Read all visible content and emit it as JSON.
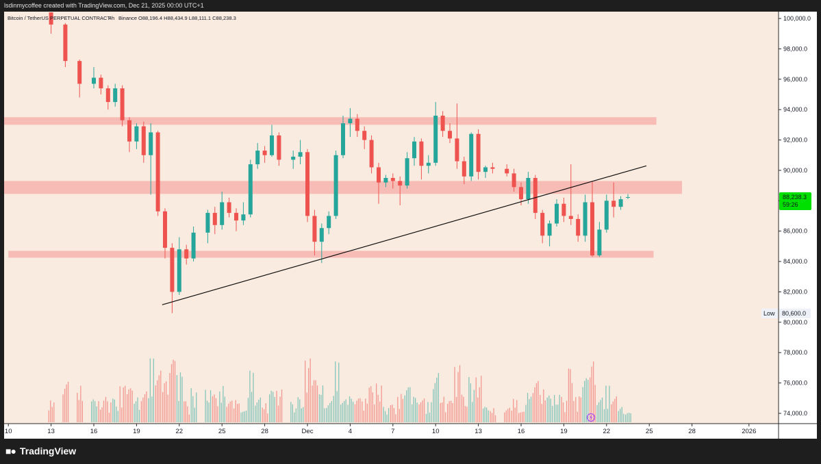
{
  "header": {
    "creator_line": "lsdinmycoffee created with TradingView.com, Dec 21, 2025 00:00 UTC+1"
  },
  "legend": {
    "symbol": "Bitcoin / TetherUS PERPETUAL CONTRACT",
    "interval": "4h",
    "exchange": "Binance",
    "ohlc": "O88,196.4  H88,434.9  L88,111.1  C88,238.3"
  },
  "price_badge": {
    "price": "88,238.3",
    "countdown": "59:26",
    "color": "#00e000"
  },
  "low_badge": {
    "label": "Low",
    "value": "80,600.0"
  },
  "footer": {
    "brand": "TradingView"
  },
  "colors": {
    "background": "#f9ebe0",
    "up_candle": "#26a69a",
    "down_candle": "#ef5350",
    "zone": "#f8b4ae",
    "trendline": "#111111"
  },
  "chart_data": {
    "type": "candlestick",
    "y_axis": {
      "ticks": [
        "100,000.0",
        "98,000.0",
        "96,000.0",
        "94,000.0",
        "92,000.0",
        "90,000.0",
        "88,000.0",
        "86,000.0",
        "84,000.0",
        "82,000.0",
        "80,000.0",
        "78,000.0",
        "76,000.0",
        "74,000.0"
      ],
      "tick_values": [
        100000,
        98000,
        96000,
        94000,
        92000,
        90000,
        88000,
        86000,
        84000,
        82000,
        80000,
        78000,
        76000,
        74000
      ],
      "range": [
        73000,
        100500
      ]
    },
    "x_axis": {
      "ticks": [
        "10",
        "13",
        "16",
        "19",
        "22",
        "25",
        "28",
        "Dec",
        "4",
        "7",
        "10",
        "13",
        "16",
        "19",
        "22",
        "25",
        "28",
        "2026"
      ],
      "tick_days": [
        -21,
        -18,
        -15,
        -12,
        -9,
        -6,
        -3,
        0,
        3,
        6,
        9,
        12,
        15,
        18,
        21,
        24,
        27,
        31
      ]
    },
    "zones": [
      {
        "from_day": -22,
        "to_day": 24.5,
        "low": 93000,
        "high": 93500
      },
      {
        "from_day": -21.5,
        "to_day": 26.3,
        "low": 88450,
        "high": 89300
      },
      {
        "from_day": -21,
        "to_day": 24.3,
        "low": 84250,
        "high": 84700
      }
    ],
    "trendline": {
      "from_day": -10.2,
      "from_price": 81150,
      "to_day": 23.8,
      "to_price": 90300
    },
    "candles": [
      {
        "d": -18.0,
        "o": 100400,
        "h": 100400,
        "l": 99000,
        "c": 99600
      },
      {
        "d": -17.0,
        "o": 99600,
        "h": 99700,
        "l": 96800,
        "c": 97200
      },
      {
        "d": -16.0,
        "o": 97200,
        "h": 97300,
        "l": 94800,
        "c": 95700
      },
      {
        "d": -15.0,
        "o": 95700,
        "h": 96800,
        "l": 95400,
        "c": 96100
      },
      {
        "d": -14.5,
        "o": 96100,
        "h": 96300,
        "l": 95000,
        "c": 95400
      },
      {
        "d": -14.0,
        "o": 95400,
        "h": 95600,
        "l": 94000,
        "c": 94500
      },
      {
        "d": -13.5,
        "o": 94500,
        "h": 95700,
        "l": 94200,
        "c": 95400
      },
      {
        "d": -13.0,
        "o": 95400,
        "h": 95600,
        "l": 92900,
        "c": 93300
      },
      {
        "d": -12.5,
        "o": 93300,
        "h": 93500,
        "l": 91200,
        "c": 91900
      },
      {
        "d": -12.0,
        "o": 91900,
        "h": 93100,
        "l": 91400,
        "c": 92900
      },
      {
        "d": -11.5,
        "o": 92900,
        "h": 93200,
        "l": 90500,
        "c": 91000
      },
      {
        "d": -11.0,
        "o": 91000,
        "h": 93100,
        "l": 88400,
        "c": 92500
      },
      {
        "d": -10.5,
        "o": 92500,
        "h": 92600,
        "l": 87000,
        "c": 87300
      },
      {
        "d": -10.0,
        "o": 87300,
        "h": 87500,
        "l": 84200,
        "c": 84900
      },
      {
        "d": -9.5,
        "o": 84900,
        "h": 85200,
        "l": 80600,
        "c": 82000
      },
      {
        "d": -9.0,
        "o": 82000,
        "h": 85600,
        "l": 81800,
        "c": 84800
      },
      {
        "d": -8.5,
        "o": 84800,
        "h": 85100,
        "l": 83800,
        "c": 84200
      },
      {
        "d": -8.0,
        "o": 84200,
        "h": 86300,
        "l": 84000,
        "c": 85900
      },
      {
        "d": -7.0,
        "o": 85900,
        "h": 87400,
        "l": 85200,
        "c": 87200
      },
      {
        "d": -6.5,
        "o": 87200,
        "h": 87600,
        "l": 85800,
        "c": 86400
      },
      {
        "d": -6.0,
        "o": 86400,
        "h": 88600,
        "l": 86100,
        "c": 87900
      },
      {
        "d": -5.5,
        "o": 87900,
        "h": 88200,
        "l": 86900,
        "c": 87200
      },
      {
        "d": -5.0,
        "o": 87200,
        "h": 87500,
        "l": 86000,
        "c": 86700
      },
      {
        "d": -4.5,
        "o": 86700,
        "h": 87900,
        "l": 86400,
        "c": 87100
      },
      {
        "d": -4.0,
        "o": 87100,
        "h": 90700,
        "l": 86900,
        "c": 90400
      },
      {
        "d": -3.5,
        "o": 90400,
        "h": 91800,
        "l": 90100,
        "c": 91300
      },
      {
        "d": -3.0,
        "o": 91300,
        "h": 91600,
        "l": 90500,
        "c": 91000
      },
      {
        "d": -2.5,
        "o": 91000,
        "h": 93000,
        "l": 90900,
        "c": 92300
      },
      {
        "d": -2.0,
        "o": 92300,
        "h": 92500,
        "l": 90300,
        "c": 90700
      },
      {
        "d": -1.0,
        "o": 90700,
        "h": 91300,
        "l": 90100,
        "c": 90900
      },
      {
        "d": -0.5,
        "o": 90900,
        "h": 92000,
        "l": 90400,
        "c": 91200
      },
      {
        "d": 0.0,
        "o": 91200,
        "h": 91400,
        "l": 86600,
        "c": 87000
      },
      {
        "d": 0.5,
        "o": 87000,
        "h": 87400,
        "l": 84400,
        "c": 85300
      },
      {
        "d": 1.0,
        "o": 85300,
        "h": 86500,
        "l": 83900,
        "c": 86200
      },
      {
        "d": 1.5,
        "o": 86200,
        "h": 87300,
        "l": 85800,
        "c": 87000
      },
      {
        "d": 2.0,
        "o": 87000,
        "h": 91300,
        "l": 86800,
        "c": 91000
      },
      {
        "d": 2.5,
        "o": 91000,
        "h": 93600,
        "l": 90800,
        "c": 93100
      },
      {
        "d": 3.0,
        "o": 93100,
        "h": 94100,
        "l": 92200,
        "c": 93400
      },
      {
        "d": 3.5,
        "o": 93400,
        "h": 93700,
        "l": 92200,
        "c": 92600
      },
      {
        "d": 4.0,
        "o": 92600,
        "h": 92900,
        "l": 91400,
        "c": 92000
      },
      {
        "d": 4.5,
        "o": 92000,
        "h": 92300,
        "l": 89800,
        "c": 90200
      },
      {
        "d": 5.0,
        "o": 90200,
        "h": 90500,
        "l": 87800,
        "c": 89200
      },
      {
        "d": 5.5,
        "o": 89200,
        "h": 89700,
        "l": 88900,
        "c": 89500
      },
      {
        "d": 6.0,
        "o": 89500,
        "h": 89800,
        "l": 88800,
        "c": 89300
      },
      {
        "d": 6.5,
        "o": 89300,
        "h": 89600,
        "l": 87700,
        "c": 89000
      },
      {
        "d": 7.0,
        "o": 89000,
        "h": 91200,
        "l": 88800,
        "c": 90800
      },
      {
        "d": 7.5,
        "o": 90800,
        "h": 92200,
        "l": 90300,
        "c": 91900
      },
      {
        "d": 8.0,
        "o": 91900,
        "h": 92100,
        "l": 89400,
        "c": 90300
      },
      {
        "d": 8.5,
        "o": 90300,
        "h": 91000,
        "l": 89800,
        "c": 90500
      },
      {
        "d": 9.0,
        "o": 90500,
        "h": 94500,
        "l": 90300,
        "c": 93600
      },
      {
        "d": 9.5,
        "o": 93600,
        "h": 93900,
        "l": 92200,
        "c": 92600
      },
      {
        "d": 10.0,
        "o": 92600,
        "h": 93100,
        "l": 91800,
        "c": 92100
      },
      {
        "d": 10.5,
        "o": 92100,
        "h": 94400,
        "l": 90100,
        "c": 90600
      },
      {
        "d": 11.0,
        "o": 90600,
        "h": 90900,
        "l": 89100,
        "c": 89600
      },
      {
        "d": 11.5,
        "o": 89600,
        "h": 92500,
        "l": 89300,
        "c": 92400
      },
      {
        "d": 12.0,
        "o": 92400,
        "h": 92700,
        "l": 89400,
        "c": 89900
      },
      {
        "d": 12.5,
        "o": 89900,
        "h": 90300,
        "l": 89500,
        "c": 90200
      },
      {
        "d": 13.0,
        "o": 90200,
        "h": 90500,
        "l": 89800,
        "c": 90100
      },
      {
        "d": 14.0,
        "o": 90100,
        "h": 90400,
        "l": 89600,
        "c": 89800
      },
      {
        "d": 14.5,
        "o": 89800,
        "h": 90100,
        "l": 88600,
        "c": 88900
      },
      {
        "d": 15.0,
        "o": 88900,
        "h": 89200,
        "l": 87700,
        "c": 88100
      },
      {
        "d": 15.5,
        "o": 88100,
        "h": 89900,
        "l": 87800,
        "c": 89500
      },
      {
        "d": 16.0,
        "o": 89500,
        "h": 89700,
        "l": 86800,
        "c": 87200
      },
      {
        "d": 16.5,
        "o": 87200,
        "h": 87400,
        "l": 85200,
        "c": 85700
      },
      {
        "d": 17.0,
        "o": 85700,
        "h": 86700,
        "l": 85000,
        "c": 86500
      },
      {
        "d": 17.5,
        "o": 86500,
        "h": 88100,
        "l": 86300,
        "c": 87800
      },
      {
        "d": 18.0,
        "o": 87800,
        "h": 88200,
        "l": 86600,
        "c": 87000
      },
      {
        "d": 18.5,
        "o": 87000,
        "h": 90400,
        "l": 86400,
        "c": 86800
      },
      {
        "d": 19.0,
        "o": 86800,
        "h": 87100,
        "l": 85300,
        "c": 85700
      },
      {
        "d": 19.5,
        "o": 85700,
        "h": 88400,
        "l": 85300,
        "c": 87900
      },
      {
        "d": 20.0,
        "o": 87900,
        "h": 89300,
        "l": 84300,
        "c": 84400
      },
      {
        "d": 20.5,
        "o": 84400,
        "h": 86600,
        "l": 84300,
        "c": 86100
      },
      {
        "d": 21.0,
        "o": 86100,
        "h": 88400,
        "l": 85900,
        "c": 88000
      },
      {
        "d": 21.5,
        "o": 88000,
        "h": 89200,
        "l": 86900,
        "c": 87600
      },
      {
        "d": 22.0,
        "o": 87600,
        "h": 88300,
        "l": 87400,
        "c": 88100
      },
      {
        "d": 22.5,
        "o": 88196.4,
        "h": 88434.9,
        "l": 88111.1,
        "c": 88238.3
      }
    ]
  }
}
